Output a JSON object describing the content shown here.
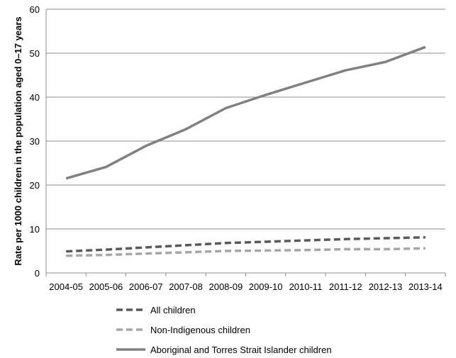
{
  "chart_data": {
    "type": "line",
    "ylabel": "Rate per 1000 children in the population aged 0–17 years",
    "ylim": [
      0,
      60
    ],
    "yticks": [
      0,
      10,
      20,
      30,
      40,
      50,
      60
    ],
    "categories": [
      "2004-05",
      "2005-06",
      "2006-07",
      "2007-08",
      "2008-09",
      "2009-10",
      "2010-11",
      "2011-12",
      "2012-13",
      "2013-14"
    ],
    "grid": "horizontal",
    "legend_position": "bottom",
    "series": [
      {
        "name": "All children",
        "color": "#595959",
        "style": "dashed",
        "values": [
          4.9,
          5.3,
          5.8,
          6.3,
          6.8,
          7.1,
          7.4,
          7.7,
          7.9,
          8.1
        ]
      },
      {
        "name": "Non-Indigenous children",
        "color": "#a6a6a6",
        "style": "dashed",
        "values": [
          3.9,
          4.1,
          4.4,
          4.7,
          5.0,
          5.1,
          5.2,
          5.4,
          5.4,
          5.6
        ]
      },
      {
        "name": "Aboriginal and Torres Strait Islander children",
        "color": "#808080",
        "style": "solid",
        "values": [
          21.5,
          24.1,
          28.9,
          32.7,
          37.5,
          40.5,
          43.3,
          46.1,
          48.0,
          51.4
        ]
      }
    ]
  }
}
